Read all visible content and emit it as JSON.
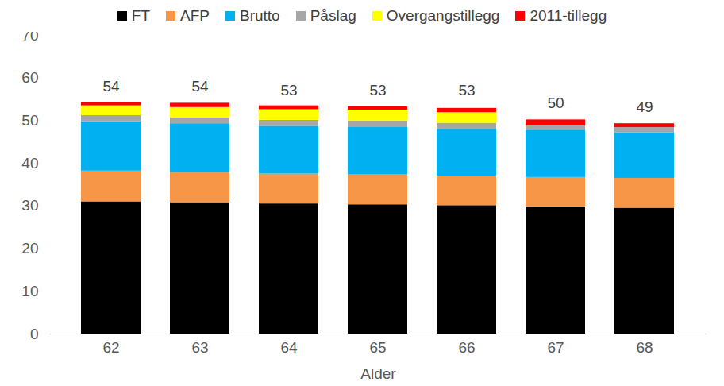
{
  "chart_data": {
    "type": "bar",
    "stacked": true,
    "legend": "top",
    "grid": false,
    "x_label": "Alder",
    "categories": [
      "62",
      "63",
      "64",
      "65",
      "66",
      "67",
      "68"
    ],
    "series": [
      {
        "name": "FT",
        "color": "#000000",
        "values": [
          31.0,
          30.8,
          30.5,
          30.3,
          30.1,
          29.8,
          29.5
        ]
      },
      {
        "name": "AFP",
        "color": "#F79646",
        "values": [
          7.2,
          7.1,
          7.0,
          7.0,
          6.9,
          6.9,
          7.0
        ]
      },
      {
        "name": "Brutto",
        "color": "#00B0F0",
        "values": [
          11.6,
          11.4,
          11.2,
          11.1,
          11.0,
          11.1,
          10.7
        ]
      },
      {
        "name": "Påslag",
        "color": "#A6A6A6",
        "values": [
          1.4,
          1.4,
          1.4,
          1.5,
          1.4,
          1.0,
          1.2
        ]
      },
      {
        "name": "Overgangstillegg",
        "color": "#FFFF00",
        "values": [
          2.3,
          2.4,
          2.5,
          2.6,
          2.5,
          0,
          0
        ]
      },
      {
        "name": "2011-tillegg",
        "color": "#FF0000",
        "values": [
          0.8,
          1.0,
          0.9,
          0.8,
          1.0,
          1.4,
          0.9
        ]
      }
    ],
    "totals": [
      54,
      54,
      53,
      53,
      53,
      50,
      49
    ],
    "ylim": [
      0,
      70
    ],
    "yticks": [
      0,
      10,
      20,
      30,
      40,
      50,
      60,
      70
    ]
  }
}
